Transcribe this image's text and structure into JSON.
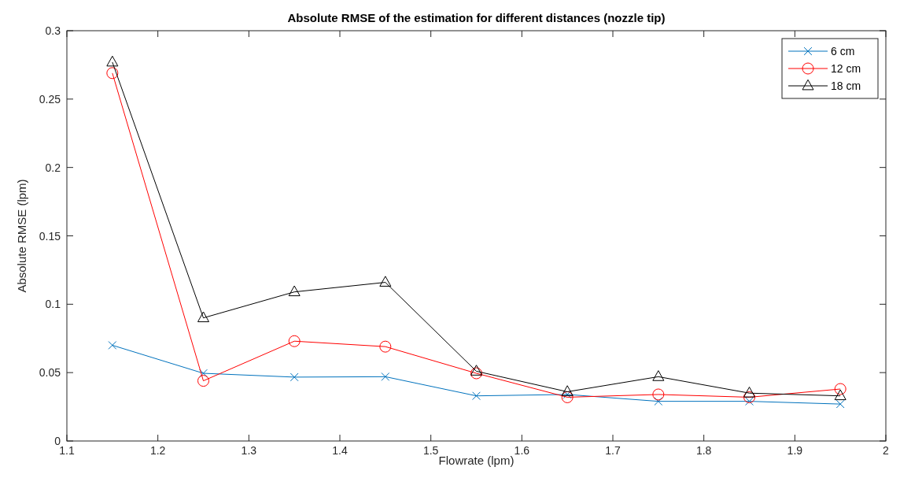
{
  "chart_data": {
    "type": "line",
    "title": "Absolute RMSE of the estimation for different distances (nozzle tip)",
    "xlabel": "Flowrate (lpm)",
    "ylabel": "Absolute RMSE (lpm)",
    "x": [
      1.15,
      1.25,
      1.35,
      1.45,
      1.55,
      1.65,
      1.75,
      1.85,
      1.95
    ],
    "xlim": [
      1.1,
      2
    ],
    "xticks": [
      1.1,
      1.2,
      1.3,
      1.4,
      1.5,
      1.6,
      1.7,
      1.8,
      1.9,
      2
    ],
    "ylim": [
      0,
      0.3
    ],
    "yticks": [
      0,
      0.05,
      0.1,
      0.15,
      0.2,
      0.25,
      0.3
    ],
    "legend": "top right",
    "grid": false,
    "series": [
      {
        "name": "6 cm",
        "color": "#0072bd",
        "marker": "cross",
        "values": [
          0.07,
          0.0495,
          0.0467,
          0.047,
          0.033,
          0.034,
          0.029,
          0.029,
          0.027
        ]
      },
      {
        "name": "12 cm",
        "color": "#ff0000",
        "marker": "circle",
        "values": [
          0.269,
          0.044,
          0.073,
          0.069,
          0.0495,
          0.032,
          0.034,
          0.032,
          0.038
        ]
      },
      {
        "name": "18 cm",
        "color": "#000000",
        "marker": "triangle",
        "values": [
          0.277,
          0.09,
          0.109,
          0.116,
          0.051,
          0.036,
          0.047,
          0.035,
          0.033
        ]
      }
    ]
  }
}
